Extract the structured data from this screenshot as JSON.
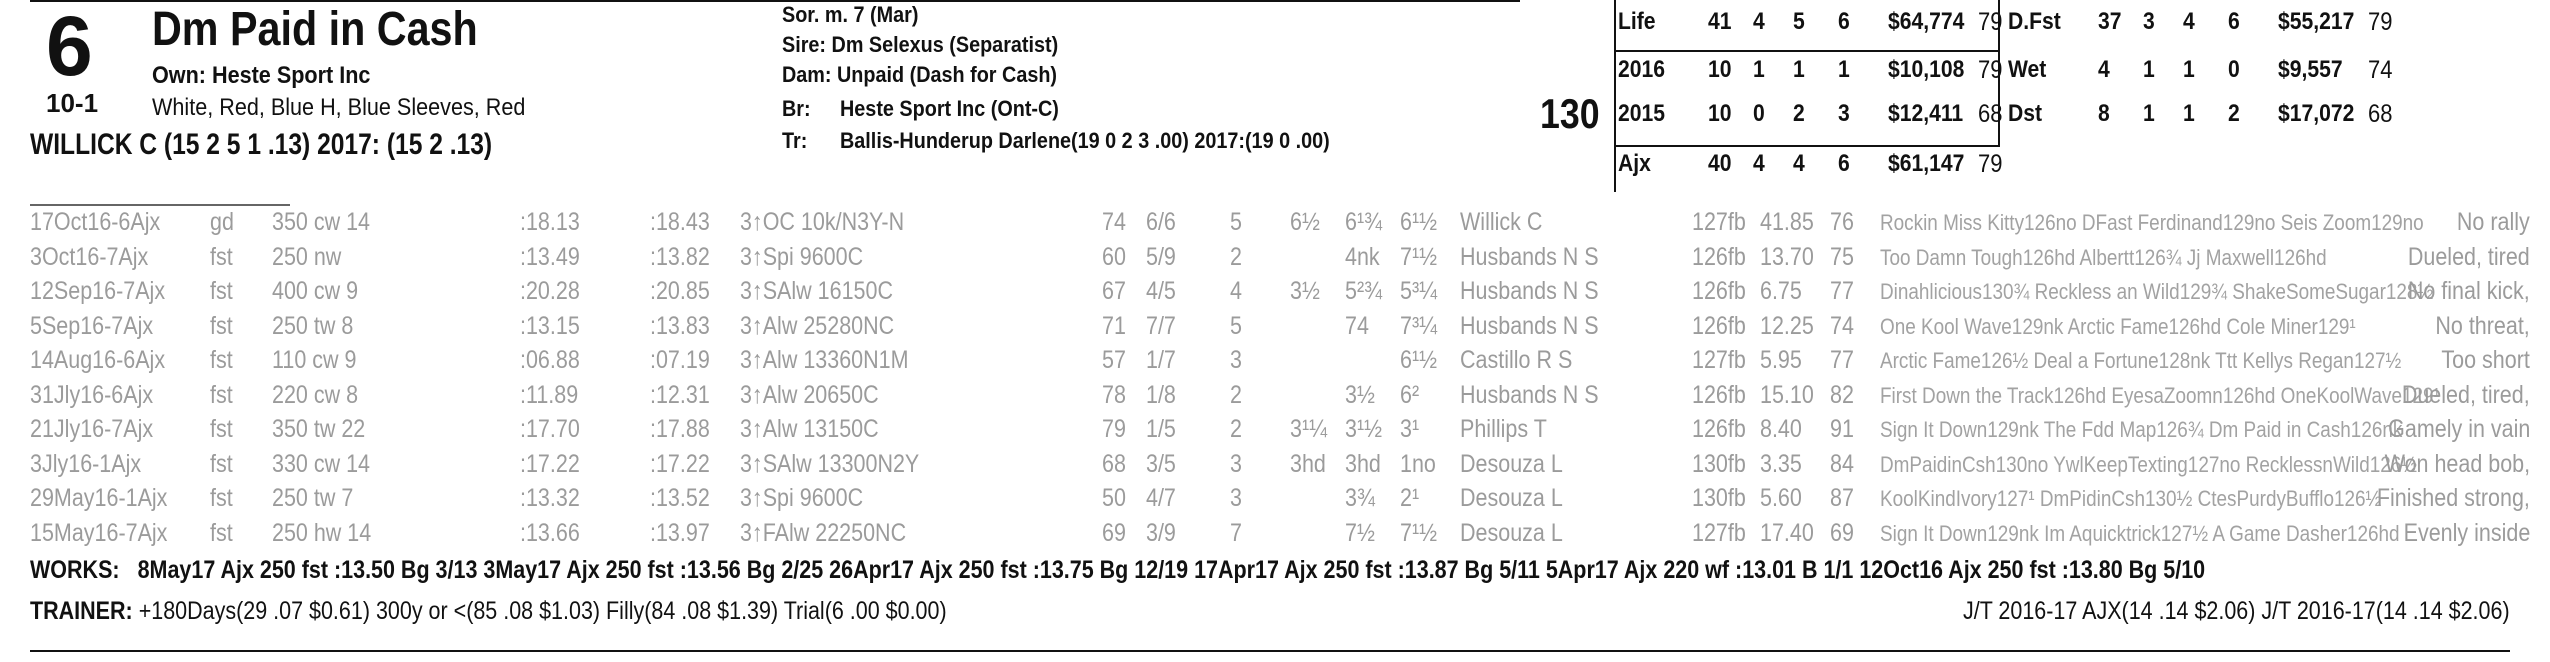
{
  "header": {
    "program_number": "6",
    "horse_name": "Dm Paid in Cash",
    "odds": "10-1",
    "owner": "Own: Heste Sport Inc",
    "silks": "White, Red, Blue H, Blue Sleeves, Red",
    "jockey": "WILLICK C (15 2 5 1 .13) 2017: (15 2 .13)"
  },
  "pedigree": {
    "sex_age": "Sor. m. 7 (Mar)",
    "sire": "Sire: Dm Selexus (Separatist)",
    "dam": "Dam: Unpaid (Dash for Cash)",
    "breeder_label": "Br:",
    "breeder": "Heste Sport Inc (Ont-C)",
    "trainer_label": "Tr:",
    "trainer": "Ballis-Hunderup Darlene(19 0 2 3 .00)  2017:(19 0 .00)"
  },
  "weight": "130",
  "stats_left": [
    {
      "label": "Life",
      "starts": "41",
      "w": "4",
      "p": "5",
      "s": "6",
      "earn": "$64,774",
      "fig": "79"
    },
    {
      "label": "2016",
      "starts": "10",
      "w": "1",
      "p": "1",
      "s": "1",
      "earn": "$10,108",
      "fig": "79"
    },
    {
      "label": "2015",
      "starts": "10",
      "w": "0",
      "p": "2",
      "s": "3",
      "earn": "$12,411",
      "fig": "68"
    },
    {
      "label": "Ajx",
      "starts": "40",
      "w": "4",
      "p": "4",
      "s": "6",
      "earn": "$61,147",
      "fig": "79"
    }
  ],
  "stats_right": [
    {
      "label": "D.Fst",
      "starts": "37",
      "w": "3",
      "p": "4",
      "s": "6",
      "earn": "$55,217",
      "fig": "79"
    },
    {
      "label": "Wet",
      "starts": "4",
      "w": "1",
      "p": "1",
      "s": "0",
      "earn": "$9,557",
      "fig": "74"
    },
    {
      "label": "Dst",
      "starts": "8",
      "w": "1",
      "p": "1",
      "s": "2",
      "earn": "$17,072",
      "fig": "68"
    }
  ],
  "past_performances": [
    {
      "date": "17Oct16-6Ajx",
      "trk": "gd",
      "dist": "350 cw 14",
      "f1": ":18.13",
      "f2": ":18.43",
      "race": "3↑OC 10k/N3Y-N",
      "spd": "74",
      "pp": "6/6",
      "st": "5",
      "c1": "6½",
      "c2": "6¹¾",
      "fin": "6¹½",
      "jockey": "Willick C",
      "wt": "127fb",
      "odds": "41.85",
      "fig": "76",
      "comment": "Rockin Miss Kitty126no DFast Ferdinand129no Seis Zoom129no",
      "result": "No rally"
    },
    {
      "date": "3Oct16-7Ajx",
      "trk": "fst",
      "dist": "250 nw",
      "f1": ":13.49",
      "f2": ":13.82",
      "race": "3↑Spi 9600C",
      "spd": "60",
      "pp": "5/9",
      "st": "2",
      "c1": "",
      "c2": "4nk",
      "fin": "7¹½",
      "jockey": "Husbands N S",
      "wt": "126fb",
      "odds": "13.70",
      "fig": "75",
      "comment": "Too Damn Tough126hd Albertt126¾ Jj Maxwell126hd",
      "result": "Dueled, tired"
    },
    {
      "date": "12Sep16-7Ajx",
      "trk": "fst",
      "dist": "400 cw 9",
      "f1": ":20.28",
      "f2": ":20.85",
      "race": "3↑SAlw 16150C",
      "spd": "67",
      "pp": "4/5",
      "st": "4",
      "c1": "3½",
      "c2": "5²¾",
      "fin": "5³¼",
      "jockey": "Husbands N S",
      "wt": "126fb",
      "odds": "6.75",
      "fig": "77",
      "comment": "Dinahlicious130¾ Reckless an Wild129¾ ShakeSomeSugar128½",
      "result": "No final kick,"
    },
    {
      "date": "5Sep16-7Ajx",
      "trk": "fst",
      "dist": "250 tw 8",
      "f1": ":13.15",
      "f2": ":13.83",
      "race": "3↑Alw 25280NC",
      "spd": "71",
      "pp": "7/7",
      "st": "5",
      "c1": "",
      "c2": "74",
      "fin": "7³¼",
      "jockey": "Husbands N S",
      "wt": "126fb",
      "odds": "12.25",
      "fig": "74",
      "comment": "One Kool Wave129nk Arctic Fame126hd Cole Miner129¹",
      "result": "No threat,"
    },
    {
      "date": "14Aug16-6Ajx",
      "trk": "fst",
      "dist": "110 cw 9",
      "f1": ":06.88",
      "f2": ":07.19",
      "race": "3↑Alw 13360N1M",
      "spd": "57",
      "pp": "1/7",
      "st": "3",
      "c1": "",
      "c2": "",
      "fin": "6¹½",
      "jockey": "Castillo R S",
      "wt": "127fb",
      "odds": "5.95",
      "fig": "77",
      "comment": "Arctic Fame126½ Deal a Fortune128nk Ttt Kellys Regan127½",
      "result": "Too short"
    },
    {
      "date": "31Jly16-6Ajx",
      "trk": "fst",
      "dist": "220 cw 8",
      "f1": ":11.89",
      "f2": ":12.31",
      "race": "3↑Alw 20650C",
      "spd": "78",
      "pp": "1/8",
      "st": "2",
      "c1": "",
      "c2": "3½",
      "fin": "6²",
      "jockey": "Husbands N S",
      "wt": "126fb",
      "odds": "15.10",
      "fig": "82",
      "comment": "First Down the Track126hd EyesaZoomn126hd OneKoolWave129¹",
      "result": "Dueled, tired,"
    },
    {
      "date": "21Jly16-7Ajx",
      "trk": "fst",
      "dist": "350 tw 22",
      "f1": ":17.70",
      "f2": ":17.88",
      "race": "3↑Alw 13150C",
      "spd": "79",
      "pp": "1/5",
      "st": "2",
      "c1": "3¹¼",
      "c2": "3¹½",
      "fin": "3¹",
      "jockey": "Phillips T",
      "wt": "126fb",
      "odds": "8.40",
      "fig": "91",
      "comment": "Sign It Down129nk The Fdd Map126¾ Dm Paid in Cash126nk",
      "result": "Gamely in vain"
    },
    {
      "date": "3Jly16-1Ajx",
      "trk": "fst",
      "dist": "330 cw 14",
      "f1": ":17.22",
      "f2": ":17.22",
      "race": "3↑SAlw 13300N2Y",
      "spd": "68",
      "pp": "3/5",
      "st": "3",
      "c1": "3hd",
      "c2": "3hd",
      "fin": "1no",
      "jockey": "Desouza L",
      "wt": "130fb",
      "odds": "3.35",
      "fig": "84",
      "comment": "DmPaidinCsh130no YwlKeepTexting127no RecklessnWild126½",
      "result": "Won head bob,"
    },
    {
      "date": "29May16-1Ajx",
      "trk": "fst",
      "dist": "250 tw 7",
      "f1": ":13.32",
      "f2": ":13.52",
      "race": "3↑Spi 9600C",
      "spd": "50",
      "pp": "4/7",
      "st": "3",
      "c1": "",
      "c2": "3¾",
      "fin": "2¹",
      "jockey": "Desouza L",
      "wt": "130fb",
      "odds": "5.60",
      "fig": "87",
      "comment": "KoolKindIvory127¹ DmPidinCsh130½ CtesPurdyBufflo126½",
      "result": "Finished strong,"
    },
    {
      "date": "15May16-7Ajx",
      "trk": "fst",
      "dist": "250 hw 14",
      "f1": ":13.66",
      "f2": ":13.97",
      "race": "3↑FAlw 22250NC",
      "spd": "69",
      "pp": "3/9",
      "st": "7",
      "c1": "",
      "c2": "7½",
      "fin": "7¹½",
      "jockey": "Desouza L",
      "wt": "127fb",
      "odds": "17.40",
      "fig": "69",
      "comment": "Sign It Down129nk Im Aquicktrick127½ A Game Dasher126hd",
      "result": "Evenly inside"
    }
  ],
  "works_label": "WORKS:",
  "works": "8May17 Ajx 250 fst :13.50 Bg 3/13   3May17 Ajx 250 fst :13.56 Bg 2/25   26Apr17 Ajx 250 fst :13.75 Bg 12/19   17Apr17 Ajx 250 fst :13.87 Bg 5/11   5Apr17 Ajx 220 wf :13.01 B 1/1   12Oct16 Ajx 250 fst :13.80 Bg 5/10",
  "trainer_label": "TRAINER:",
  "trainer_stats": "+180Days(29 .07 $0.61) 300y or <(85 .08 $1.03) Filly(84 .08 $1.39) Trial(6 .00 $0.00)",
  "jt_stats": "J/T 2016-17 AJX(14 .14 $2.06)  J/T 2016-17(14 .14 $2.06)"
}
